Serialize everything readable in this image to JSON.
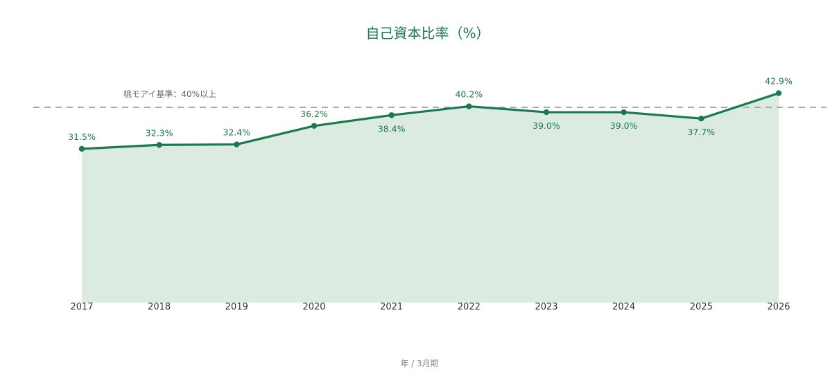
{
  "chart_data": {
    "type": "area",
    "title": "自己資本比率（%）",
    "xlabel": "年 / 3月期",
    "ylabel": "",
    "categories": [
      "2017",
      "2018",
      "2019",
      "2020",
      "2021",
      "2022",
      "2023",
      "2024",
      "2025",
      "2026"
    ],
    "series": [
      {
        "values": [
          31.5,
          32.3,
          32.4,
          36.2,
          38.4,
          40.2,
          39.0,
          39.0,
          37.7,
          42.9
        ],
        "labels": [
          "31.5%",
          "32.3%",
          "32.4%",
          "36.2%",
          "38.4%",
          "40.2%",
          "39.0%",
          "39.0%",
          "37.7%",
          "42.9%"
        ],
        "label_positions": [
          "above",
          "above",
          "above",
          "above",
          "below",
          "above",
          "below",
          "below",
          "below",
          "above"
        ]
      }
    ],
    "reference_line": {
      "value": 40,
      "label": "桃モアイ基準：40%以上",
      "style": "dashed"
    },
    "ylim": [
      0,
      43
    ],
    "grid": false,
    "legend": "none",
    "colors": {
      "line": "#1a7a4c",
      "fill": "#dbebe2",
      "reference": "#a8a8a8",
      "title": "#1a7a4c"
    }
  }
}
